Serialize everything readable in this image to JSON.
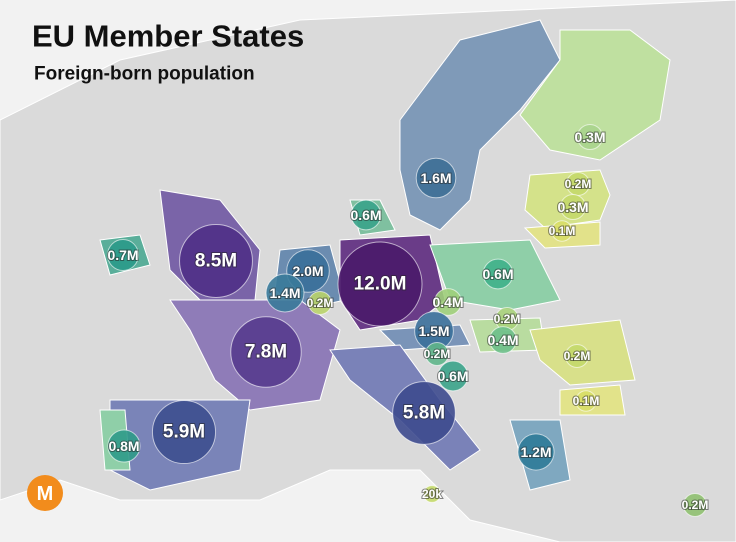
{
  "title": "EU Member States",
  "subtitle": "Foreign-born population",
  "logo": "M",
  "bubbles": [
    {
      "label": "0.3M",
      "value": 300000,
      "color": "#a9d48c"
    },
    {
      "label": "1.6M",
      "value": 1600000,
      "color": "#3e6f96"
    },
    {
      "label": "0.2M",
      "value": 200000,
      "color": "#c4d96a"
    },
    {
      "label": "0.3M",
      "value": 300000,
      "color": "#c4d96a"
    },
    {
      "label": "0.1M",
      "value": 100000,
      "color": "#d8de66"
    },
    {
      "label": "0.6M",
      "value": 600000,
      "color": "#3aa38a"
    },
    {
      "label": "0.7M",
      "value": 700000,
      "color": "#2a9a8a"
    },
    {
      "label": "8.5M",
      "value": 8500000,
      "color": "#4f2f86"
    },
    {
      "label": "2.0M",
      "value": 2000000,
      "color": "#3a6f9a"
    },
    {
      "label": "12.0M",
      "value": 12000000,
      "color": "#4a1a6a"
    },
    {
      "label": "0.6M",
      "value": 600000,
      "color": "#3fb08a"
    },
    {
      "label": "1.4M",
      "value": 1400000,
      "color": "#3a7a9a"
    },
    {
      "label": "0.2M",
      "value": 200000,
      "color": "#b9d36a"
    },
    {
      "label": "0.4M",
      "value": 400000,
      "color": "#9fcf7a"
    },
    {
      "label": "0.2M",
      "value": 200000,
      "color": "#a9d27a"
    },
    {
      "label": "1.5M",
      "value": 1500000,
      "color": "#3a6f9a"
    },
    {
      "label": "0.4M",
      "value": 400000,
      "color": "#6dbf8a"
    },
    {
      "label": "0.2M",
      "value": 200000,
      "color": "#5fb58a"
    },
    {
      "label": "7.8M",
      "value": 7800000,
      "color": "#563b8e"
    },
    {
      "label": "0.6M",
      "value": 600000,
      "color": "#3aa38a"
    },
    {
      "label": "0.2M",
      "value": 200000,
      "color": "#c4d96a"
    },
    {
      "label": "0.1M",
      "value": 100000,
      "color": "#d8de66"
    },
    {
      "label": "5.8M",
      "value": 5800000,
      "color": "#3d4a8e"
    },
    {
      "label": "5.9M",
      "value": 5900000,
      "color": "#3d4f8f"
    },
    {
      "label": "0.8M",
      "value": 800000,
      "color": "#2f9a88"
    },
    {
      "label": "1.2M",
      "value": 1200000,
      "color": "#2f7a98"
    },
    {
      "label": "20k",
      "value": 20000,
      "color": "#c4d96a"
    },
    {
      "label": "0.2M",
      "value": 200000,
      "color": "#8fc070"
    }
  ]
}
